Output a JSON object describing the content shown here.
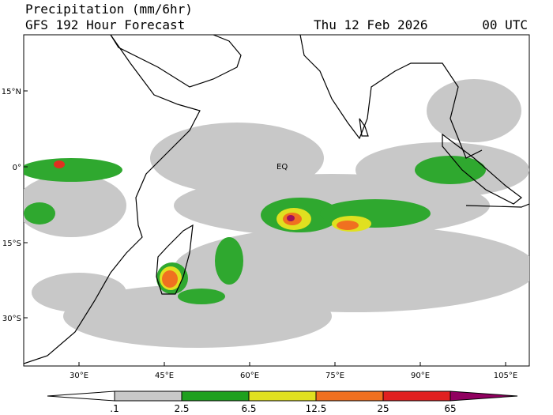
{
  "header": {
    "title": "Precipitation (mm/6hr)",
    "subtitle": "GFS 192 Hour Forecast",
    "date": "Thu 12 Feb 2026",
    "time": "00 UTC"
  },
  "map": {
    "lat_labels": [
      "15°N",
      "0°",
      "15°S",
      "30°S"
    ],
    "lon_labels": [
      "30°E",
      "45°E",
      "60°E",
      "75°E",
      "90°E",
      "105°E"
    ],
    "equator_label": "EQ"
  },
  "legend": {
    "labels": [
      ".1",
      "2.5",
      "6.5",
      "12.5",
      "25",
      "65"
    ]
  }
}
